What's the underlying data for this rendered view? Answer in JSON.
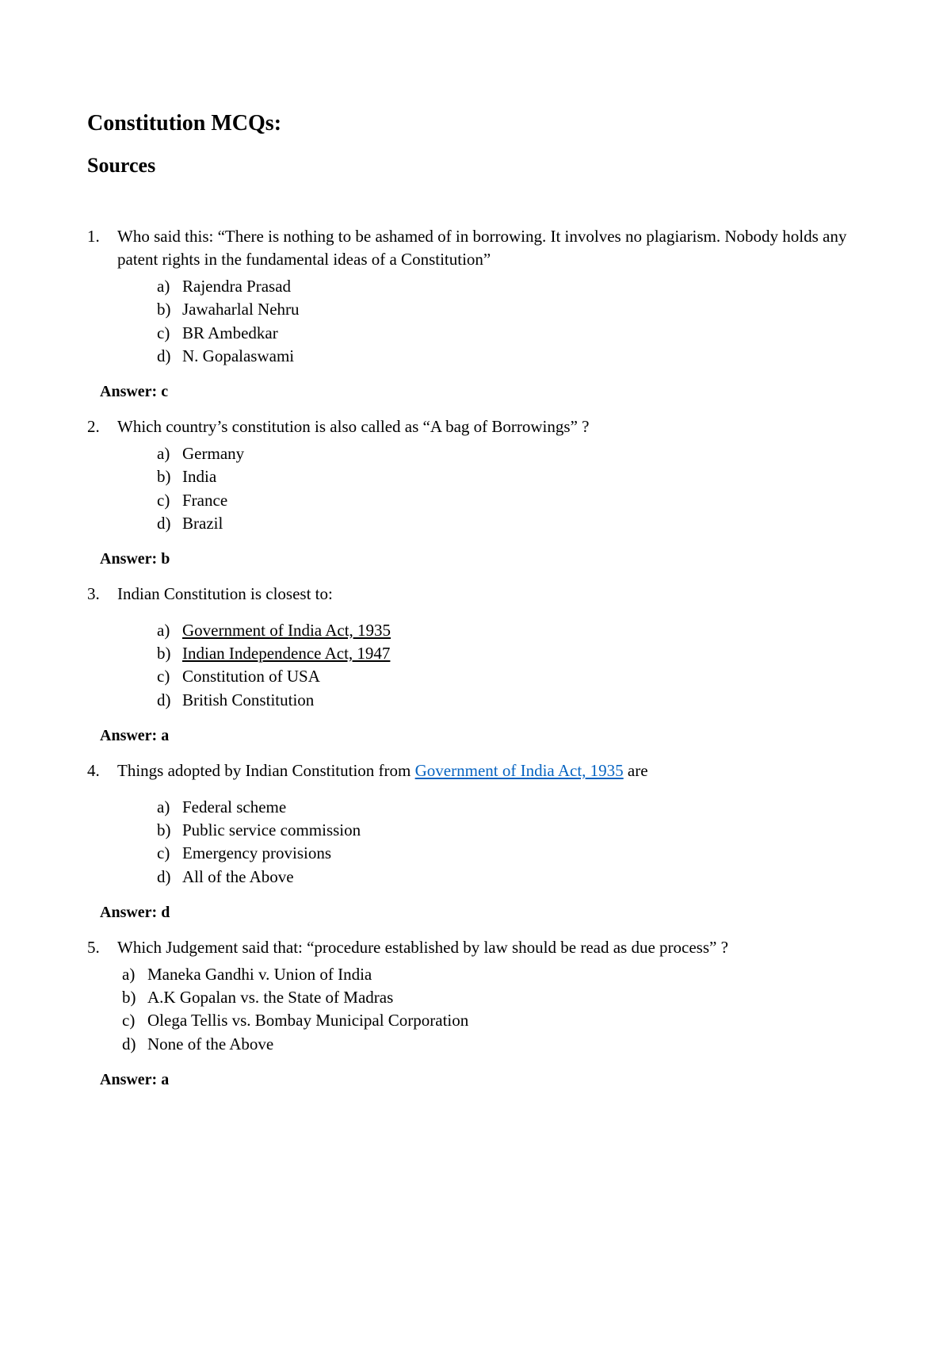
{
  "title": "Constitution MCQs:",
  "subtitle": "Sources",
  "answer_label": "Answer:",
  "questions": [
    {
      "num": "1.",
      "text": "Who said this: “There is nothing to be ashamed of in borrowing. It involves no plagiarism. Nobody holds any patent rights in the fundamental ideas of a Constitution”",
      "options": [
        {
          "letter": "a)",
          "text": "Rajendra Prasad"
        },
        {
          "letter": "b)",
          "text": "Jawaharlal Nehru"
        },
        {
          "letter": "c)",
          "text": "BR Ambedkar"
        },
        {
          "letter": "d)",
          "text": "N. Gopalaswami"
        }
      ],
      "answer": "c"
    },
    {
      "num": "2.",
      "text": "Which country’s constitution is also called as “A bag of Borrowings” ?",
      "options": [
        {
          "letter": "a)",
          "text": "Germany"
        },
        {
          "letter": "b)",
          "text": "India"
        },
        {
          "letter": "c)",
          "text": "France"
        },
        {
          "letter": "d)",
          "text": "Brazil"
        }
      ],
      "answer": "b"
    },
    {
      "num": "3.",
      "text": "Indian Constitution is closest to:",
      "options": [
        {
          "letter": "a)",
          "text": "Government of India Act, 1935",
          "underline": true
        },
        {
          "letter": "b)",
          "text": "Indian Independence Act, 1947",
          "underline": true
        },
        {
          "letter": "c)",
          "text": "Constitution of USA"
        },
        {
          "letter": "d)",
          "text": "British Constitution"
        }
      ],
      "answer": "a",
      "gap_before_options": true
    },
    {
      "num": "4.",
      "text_pre": "Things adopted by Indian Constitution from ",
      "text_link": "Government of India Act, 1935",
      "text_post": " are",
      "options": [
        {
          "letter": "a)",
          "text": "Federal scheme"
        },
        {
          "letter": "b)",
          "text": "Public service commission"
        },
        {
          "letter": "c)",
          "text": "Emergency provisions"
        },
        {
          "letter": "d)",
          "text": "All of the Above"
        }
      ],
      "answer": "d",
      "gap_before_options": true
    },
    {
      "num": "5.",
      "text": "Which Judgement said that: “procedure established by law should be read as due process” ?",
      "options_indent": "less",
      "options": [
        {
          "letter": "a)",
          "text": "Maneka Gandhi v. Union of India"
        },
        {
          "letter": "b)",
          "text": "A.K Gopalan vs. the State of Madras"
        },
        {
          "letter": "c)",
          "text": "Olega Tellis vs. Bombay Municipal Corporation"
        },
        {
          "letter": "d)",
          "text": "None of the Above"
        }
      ],
      "answer": "a"
    }
  ]
}
